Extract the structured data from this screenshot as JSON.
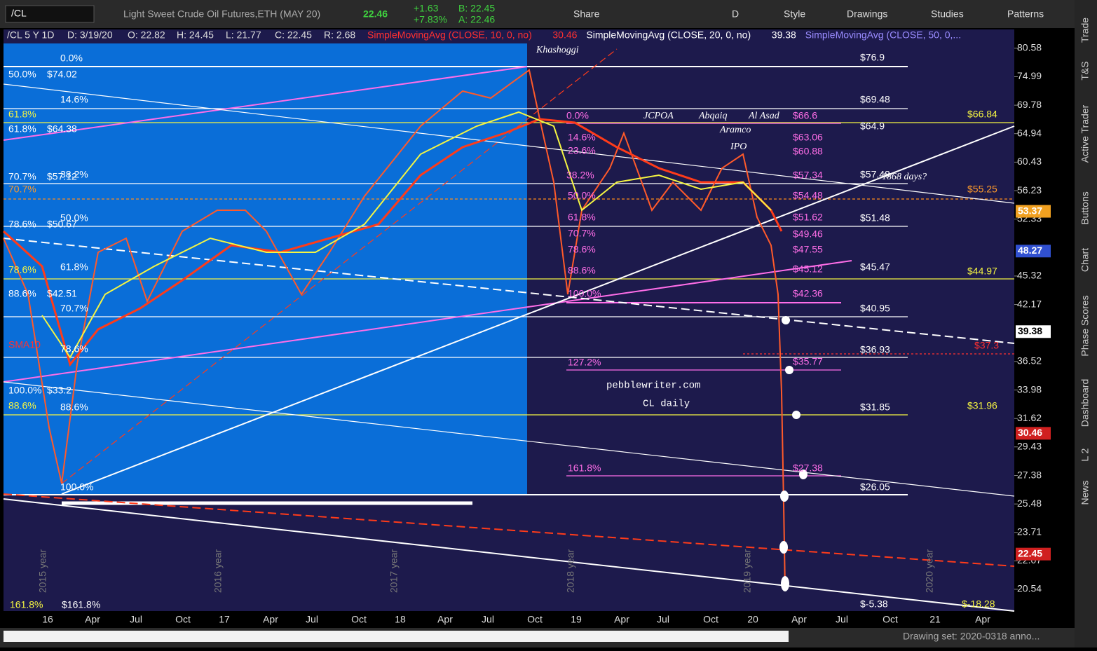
{
  "toolbar": {
    "symbol": "/CL",
    "description": "Light Sweet Crude Oil Futures,ETH (MAY 20)",
    "last": "22.46",
    "change": "+1.63",
    "change_pct": "+7.83%",
    "bid": "B: 22.45",
    "ask": "A: 22.46",
    "buttons": [
      "Share",
      "D",
      "Style",
      "Drawings",
      "Studies",
      "Patterns"
    ]
  },
  "header": {
    "items": [
      "/CL 5 Y 1D",
      "D: 3/19/20",
      "O: 22.82",
      "H: 24.45",
      "L: 21.77",
      "C: 22.45",
      "R: 2.68"
    ],
    "studies": [
      {
        "name": "SimpleMovingAvg (CLOSE, 10, 0, no)",
        "value": "30.46",
        "color": "#ff3030"
      },
      {
        "name": "SimpleMovingAvg (CLOSE, 20, 0, no)",
        "value": "39.38",
        "color": "#ffffff"
      },
      {
        "name": "SimpleMovingAvg (CLOSE, 50, 0,...",
        "value": "",
        "color": "#9a8cff"
      }
    ]
  },
  "chart": {
    "price_axis": {
      "scale": "log",
      "ylim": [
        19.44,
        84.5
      ],
      "ticks": [
        80.58,
        74.99,
        69.78,
        64.94,
        60.43,
        56.23,
        52.33,
        45.32,
        42.17,
        36.52,
        33.98,
        31.62,
        29.43,
        27.38,
        25.48,
        23.71,
        22.07,
        20.54
      ]
    },
    "price_tags": [
      {
        "value": 53.37,
        "color": "#f0a020"
      },
      {
        "value": 48.27,
        "color": "#3050d0"
      },
      {
        "value": 39.38,
        "color": "#ffffff"
      },
      {
        "value": 30.46,
        "color": "#d02020"
      },
      {
        "value": 22.45,
        "color": "#d02020"
      }
    ],
    "time_axis": [
      "16",
      "Apr",
      "Jul",
      "Oct",
      "17",
      "Apr",
      "Jul",
      "Oct",
      "18",
      "Apr",
      "Jul",
      "Oct",
      "19",
      "Apr",
      "Jul",
      "Oct",
      "20",
      "Apr",
      "Jul",
      "Oct",
      "21",
      "Apr"
    ],
    "year_labels": [
      "2015 year",
      "2016 year",
      "2017 year",
      "2018 year",
      "2019 year",
      "2020 year"
    ],
    "annotations": [
      "Khashoggi",
      "JCPOA",
      "Abqaiq",
      "Al Asad",
      "Aramco",
      "IPO",
      "1868 days?",
      "pebblewriter.com",
      "CL daily",
      "0.0%",
      "50.0%",
      "$74.02",
      "14.6%",
      "61.8%",
      "61.8%",
      "$64.38",
      "70.7%",
      "$57.12",
      "38.2%",
      "70.7%",
      "78.6%",
      "$50.67",
      "50.0%",
      "61.8%",
      "78.6%",
      "88.6%",
      "$42.51",
      "70.7%",
      "SMA10",
      "78.6%",
      "100.0%",
      "$33.2",
      "88.6%",
      "88.6%",
      "100.0%",
      "161.8%",
      "$161.8%",
      "0.0%",
      "14.6%",
      "23.6%",
      "38.2%",
      "50.0%",
      "61.8%",
      "70.7%",
      "78.6%",
      "88.6%",
      "100.0%",
      "127.2%",
      "161.8%",
      "$66.6",
      "$63.06",
      "$60.88",
      "$57.34",
      "$54.48",
      "$51.62",
      "$49.46",
      "$47.55",
      "$45.12",
      "$42.36",
      "$35.77",
      "$27.38",
      "$76.9",
      "$69.48",
      "$64.9",
      "$57.48",
      "$51.48",
      "$45.47",
      "$40.95",
      "$36.93",
      "$31.85",
      "$26.05",
      "$-5.38",
      "$66.84",
      "$55.25",
      "$44.97",
      "$31.96",
      "$-18.28",
      "$37.3"
    ]
  },
  "sidebar": {
    "tabs": [
      "Trade",
      "T&S",
      "Active Trader",
      "Buttons",
      "Chart",
      "Phase Scores",
      "Dashboard",
      "L 2",
      "News"
    ]
  },
  "footer": {
    "drawing_set": "Drawing set: 2020-0318 anno..."
  }
}
